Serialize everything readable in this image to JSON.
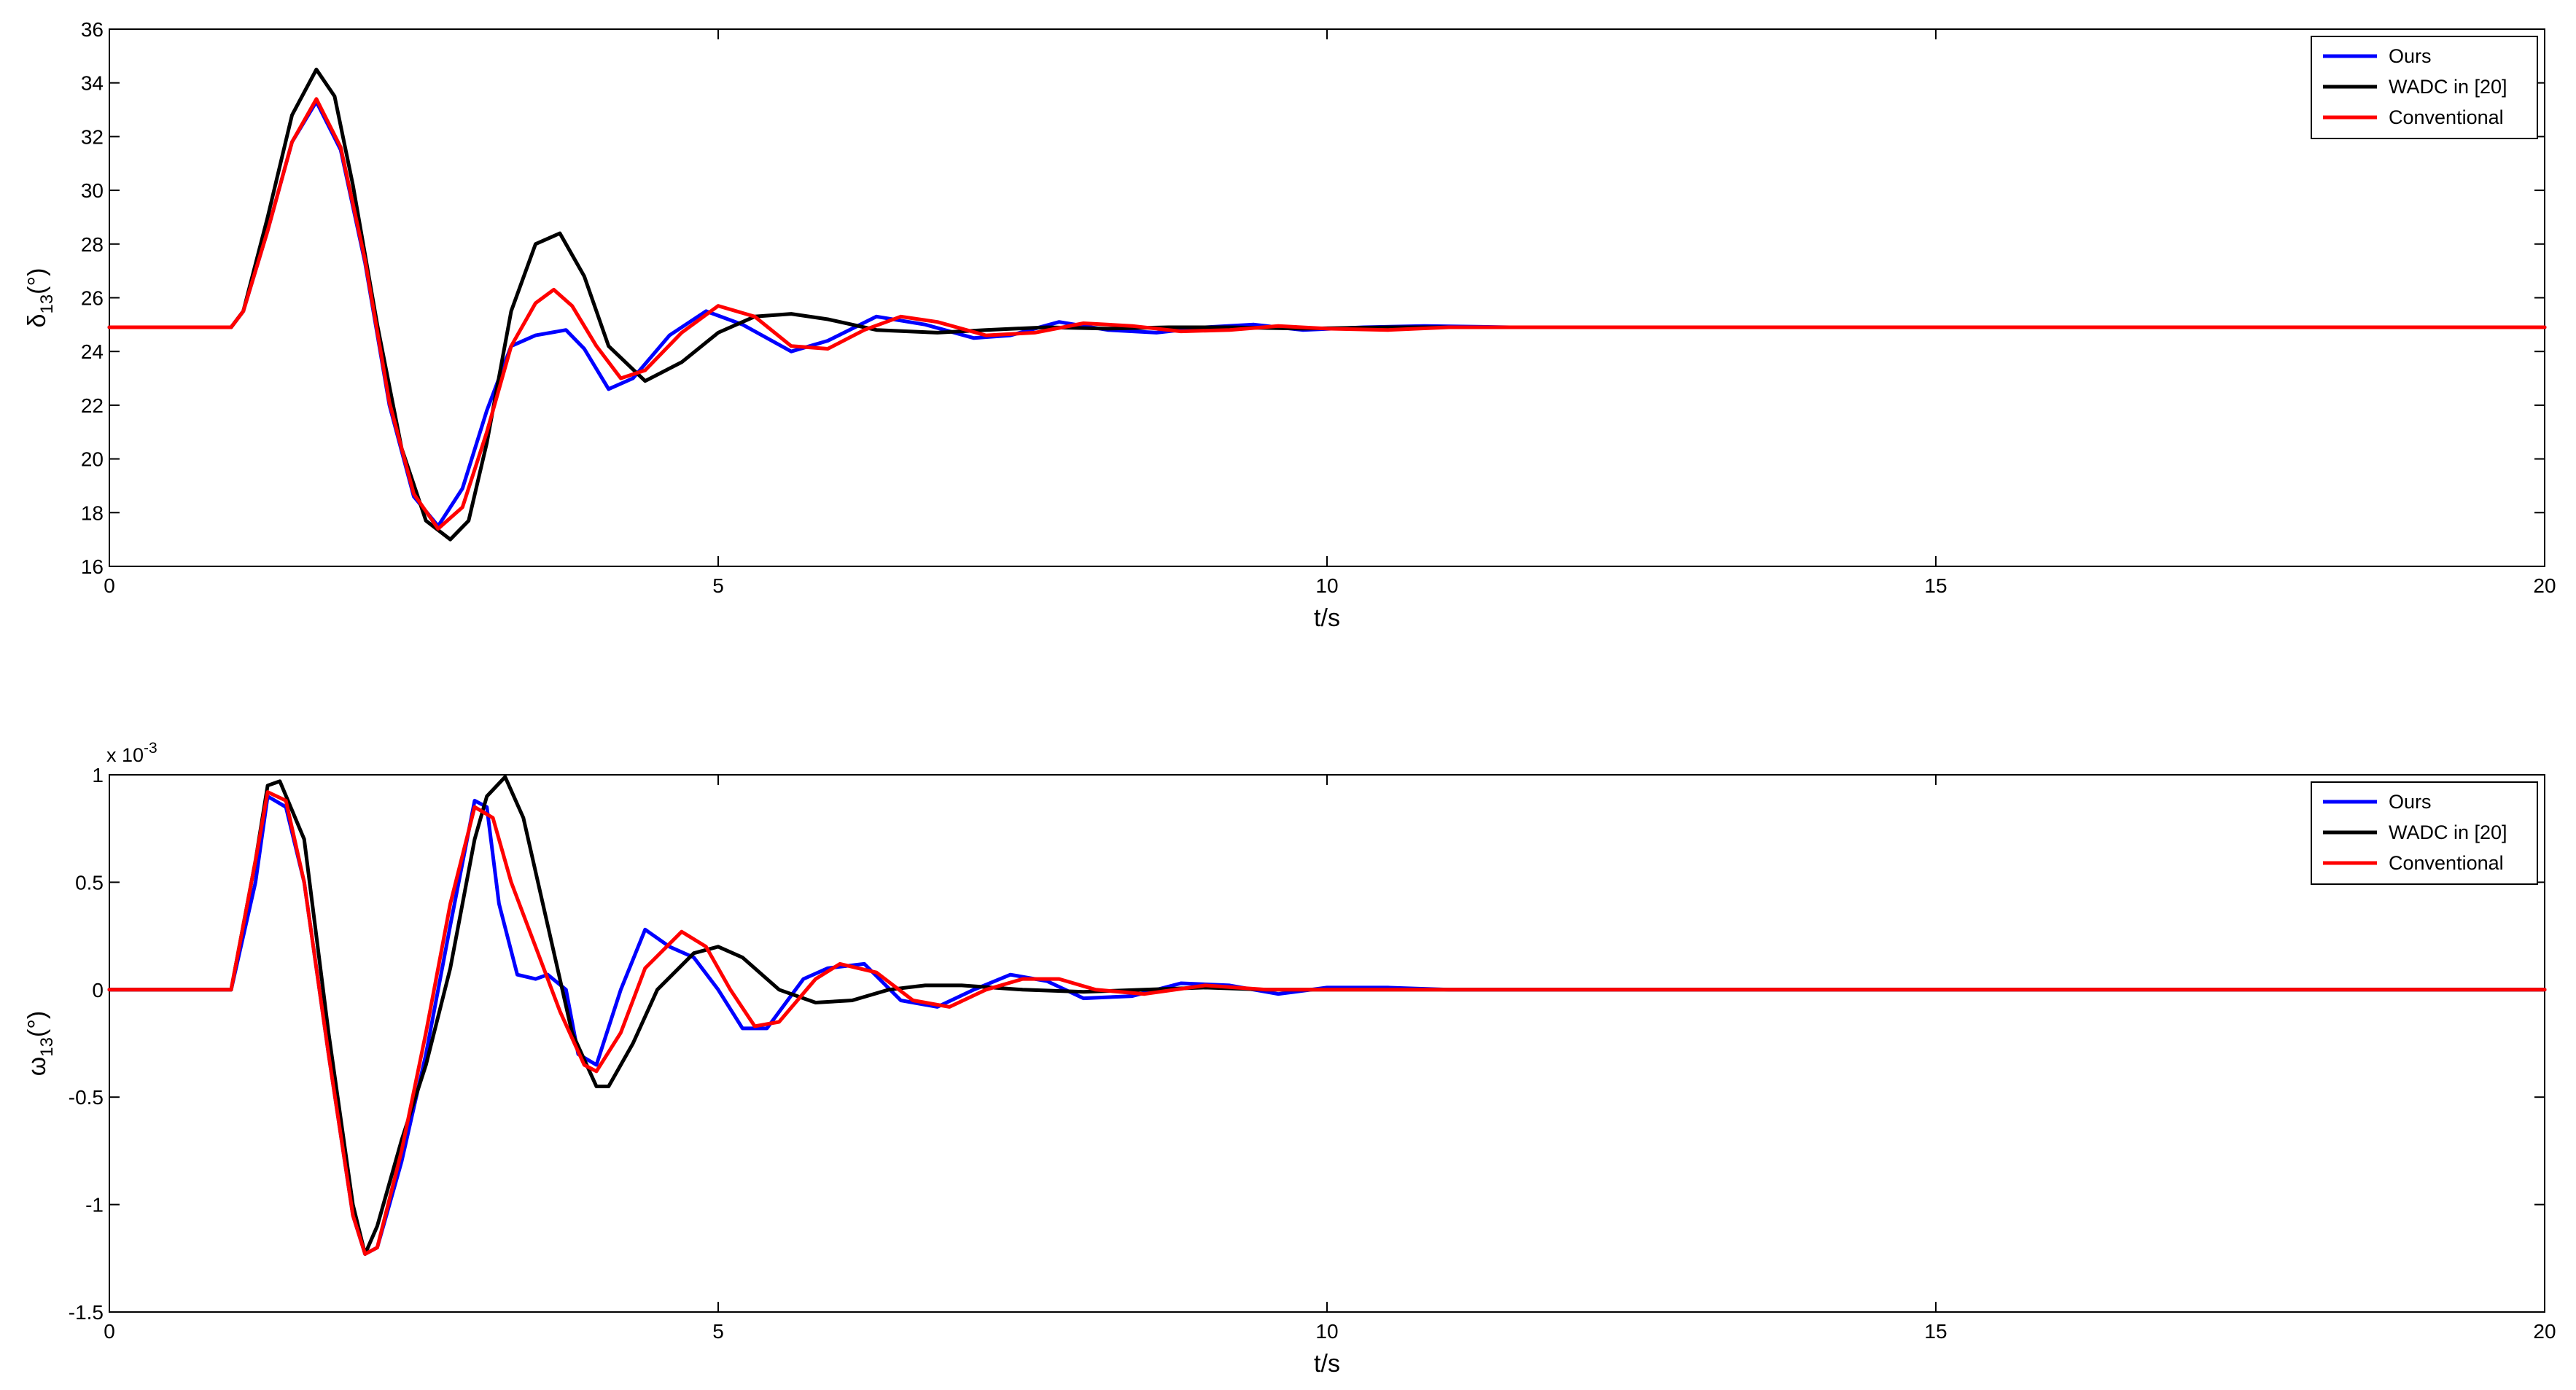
{
  "chart_data": [
    {
      "type": "line",
      "title": "",
      "xlabel": "t/s",
      "ylabel": "δ13(°)",
      "ylabel_parts": {
        "main": "δ",
        "sub": "13",
        "unit": "(°)"
      },
      "xlim": [
        0,
        20
      ],
      "ylim": [
        16,
        36
      ],
      "xticks": [
        0,
        5,
        10,
        15,
        20
      ],
      "xtick_labels": [
        "0",
        "5",
        "10",
        "15",
        "20"
      ],
      "yticks": [
        16,
        18,
        20,
        22,
        24,
        26,
        28,
        30,
        32,
        34,
        36
      ],
      "ytick_labels": [
        "16",
        "18",
        "20",
        "22",
        "24",
        "26",
        "28",
        "30",
        "32",
        "34",
        "36"
      ],
      "y_exponent_label": "",
      "grid": false,
      "legend_position": "top-right",
      "series": [
        {
          "name": "Ours",
          "color": "#0000ff",
          "x": [
            0,
            1.0,
            1.1,
            1.3,
            1.5,
            1.7,
            1.9,
            2.1,
            2.3,
            2.5,
            2.7,
            2.9,
            3.1,
            3.3,
            3.5,
            3.75,
            3.9,
            4.1,
            4.3,
            4.6,
            4.9,
            5.2,
            5.6,
            5.9,
            6.3,
            6.7,
            7.1,
            7.4,
            7.8,
            8.2,
            8.6,
            9.0,
            9.4,
            9.8,
            10.3,
            10.8,
            11.5,
            13,
            20
          ],
          "y": [
            24.9,
            24.9,
            25.5,
            28.5,
            31.8,
            33.3,
            31.5,
            27.3,
            22.0,
            18.6,
            17.5,
            18.9,
            21.8,
            24.2,
            24.6,
            24.8,
            24.1,
            22.6,
            23.0,
            24.6,
            25.5,
            25.0,
            24.0,
            24.4,
            25.3,
            25.0,
            24.5,
            24.6,
            25.1,
            24.8,
            24.7,
            24.9,
            25.0,
            24.8,
            24.9,
            24.95,
            24.9,
            24.9,
            24.9
          ]
        },
        {
          "name": "WADC in [20]",
          "color": "#000000",
          "x": [
            0,
            1.0,
            1.1,
            1.3,
            1.5,
            1.7,
            1.85,
            2.0,
            2.2,
            2.4,
            2.6,
            2.8,
            2.95,
            3.1,
            3.3,
            3.5,
            3.7,
            3.9,
            4.1,
            4.4,
            4.7,
            5.0,
            5.3,
            5.6,
            5.9,
            6.3,
            6.8,
            7.2,
            7.7,
            8.2,
            8.7,
            9.2,
            9.8,
            10.5,
            11.5,
            20
          ],
          "y": [
            24.9,
            24.9,
            25.5,
            29.0,
            32.8,
            34.5,
            33.5,
            30.2,
            25.0,
            20.4,
            17.7,
            17.0,
            17.7,
            20.6,
            25.5,
            28.0,
            28.4,
            26.8,
            24.2,
            22.9,
            23.6,
            24.7,
            25.3,
            25.4,
            25.2,
            24.8,
            24.7,
            24.8,
            24.9,
            24.85,
            24.9,
            24.9,
            24.85,
            24.9,
            24.9,
            24.9
          ]
        },
        {
          "name": "Conventional",
          "color": "#ff0000",
          "x": [
            0,
            1.0,
            1.1,
            1.3,
            1.5,
            1.7,
            1.9,
            2.1,
            2.3,
            2.5,
            2.7,
            2.9,
            3.1,
            3.3,
            3.5,
            3.65,
            3.8,
            4.0,
            4.2,
            4.4,
            4.7,
            5.0,
            5.3,
            5.6,
            5.9,
            6.2,
            6.5,
            6.8,
            7.2,
            7.6,
            8.0,
            8.4,
            8.8,
            9.2,
            9.6,
            10.0,
            10.5,
            11.0,
            20
          ],
          "y": [
            24.9,
            24.9,
            25.5,
            28.5,
            31.8,
            33.4,
            31.6,
            27.4,
            22.1,
            18.7,
            17.4,
            18.2,
            21.0,
            24.2,
            25.8,
            26.3,
            25.7,
            24.2,
            23.0,
            23.3,
            24.7,
            25.7,
            25.3,
            24.2,
            24.1,
            24.8,
            25.3,
            25.1,
            24.6,
            24.7,
            25.05,
            24.95,
            24.75,
            24.8,
            24.95,
            24.85,
            24.8,
            24.9,
            24.9
          ]
        }
      ]
    },
    {
      "type": "line",
      "title": "",
      "xlabel": "t/s",
      "ylabel": "ω13(°)",
      "ylabel_parts": {
        "main": "ω",
        "sub": "13",
        "unit": "(°)"
      },
      "xlim": [
        0,
        20
      ],
      "ylim": [
        -1.5,
        1.0
      ],
      "xticks": [
        0,
        5,
        10,
        15,
        20
      ],
      "xtick_labels": [
        "0",
        "5",
        "10",
        "15",
        "20"
      ],
      "yticks": [
        -1.5,
        -1.0,
        -0.5,
        0,
        0.5,
        1.0
      ],
      "ytick_labels": [
        "-1.5",
        "-1",
        "-0.5",
        "0",
        "0.5",
        "1"
      ],
      "y_exponent_label": "x 10",
      "y_exponent_power": "-3",
      "grid": false,
      "legend_position": "top-right",
      "series": [
        {
          "name": "Ours",
          "color": "#0000ff",
          "x": [
            0,
            1.0,
            1.2,
            1.3,
            1.45,
            1.6,
            1.8,
            2.0,
            2.1,
            2.2,
            2.4,
            2.6,
            2.8,
            3.0,
            3.1,
            3.2,
            3.35,
            3.5,
            3.6,
            3.75,
            3.85,
            4.0,
            4.2,
            4.4,
            4.6,
            4.8,
            5.0,
            5.2,
            5.4,
            5.7,
            5.9,
            6.2,
            6.5,
            6.8,
            7.1,
            7.4,
            7.7,
            8.0,
            8.4,
            8.8,
            9.2,
            9.6,
            10.0,
            10.5,
            11,
            12,
            20
          ],
          "y": [
            0,
            0,
            0.5,
            0.9,
            0.85,
            0.5,
            -0.3,
            -1.05,
            -1.23,
            -1.2,
            -0.8,
            -0.3,
            0.3,
            0.88,
            0.85,
            0.4,
            0.07,
            0.05,
            0.07,
            0.0,
            -0.3,
            -0.35,
            0.0,
            0.28,
            0.2,
            0.15,
            0.0,
            -0.18,
            -0.18,
            0.05,
            0.1,
            0.12,
            -0.05,
            -0.08,
            0.0,
            0.07,
            0.04,
            -0.04,
            -0.03,
            0.03,
            0.02,
            -0.02,
            0.01,
            0.01,
            0.0,
            0.0,
            0.0
          ]
        },
        {
          "name": "WADC in [20]",
          "color": "#000000",
          "x": [
            0,
            1.0,
            1.2,
            1.3,
            1.4,
            1.6,
            1.8,
            2.0,
            2.1,
            2.2,
            2.4,
            2.6,
            2.8,
            3.0,
            3.1,
            3.25,
            3.4,
            3.6,
            3.8,
            4.0,
            4.1,
            4.3,
            4.5,
            4.8,
            5.0,
            5.2,
            5.5,
            5.8,
            6.1,
            6.4,
            6.7,
            7.0,
            7.5,
            8.0,
            8.5,
            9.0,
            9.5,
            10,
            11,
            20
          ],
          "y": [
            0,
            0,
            0.6,
            0.95,
            0.97,
            0.7,
            -0.2,
            -1.0,
            -1.23,
            -1.1,
            -0.7,
            -0.35,
            0.1,
            0.7,
            0.9,
            0.99,
            0.8,
            0.3,
            -0.2,
            -0.45,
            -0.45,
            -0.25,
            0.0,
            0.17,
            0.2,
            0.15,
            0.0,
            -0.06,
            -0.05,
            0.0,
            0.02,
            0.02,
            0.0,
            -0.01,
            0.0,
            0.01,
            0.0,
            0.0,
            0.0,
            0.0
          ]
        },
        {
          "name": "Conventional",
          "color": "#ff0000",
          "x": [
            0,
            1.0,
            1.2,
            1.3,
            1.45,
            1.6,
            1.8,
            2.0,
            2.1,
            2.2,
            2.4,
            2.6,
            2.8,
            3.0,
            3.15,
            3.3,
            3.5,
            3.7,
            3.9,
            4.0,
            4.2,
            4.4,
            4.7,
            4.9,
            5.1,
            5.3,
            5.5,
            5.8,
            6.0,
            6.3,
            6.6,
            6.9,
            7.2,
            7.5,
            7.8,
            8.1,
            8.5,
            9.0,
            9.5,
            10,
            11,
            20
          ],
          "y": [
            0,
            0,
            0.6,
            0.92,
            0.88,
            0.5,
            -0.3,
            -1.05,
            -1.23,
            -1.2,
            -0.75,
            -0.2,
            0.4,
            0.85,
            0.8,
            0.5,
            0.2,
            -0.1,
            -0.35,
            -0.38,
            -0.2,
            0.1,
            0.27,
            0.2,
            0.0,
            -0.17,
            -0.15,
            0.05,
            0.12,
            0.08,
            -0.05,
            -0.08,
            0.0,
            0.05,
            0.05,
            0.0,
            -0.02,
            0.02,
            0.0,
            0.0,
            0.0,
            0.0
          ]
        }
      ]
    }
  ]
}
